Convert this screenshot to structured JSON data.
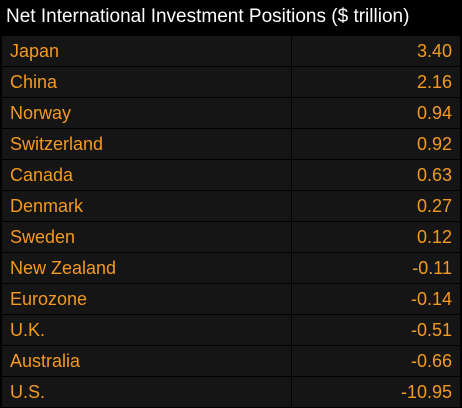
{
  "header": {
    "title": "Net International Investment Positions ($ trillion)"
  },
  "colors": {
    "background": "#000000",
    "row_background": "#151515",
    "text": "#f39a1f",
    "header_text": "#ffffff"
  },
  "chart_data": {
    "type": "table",
    "title": "Net International Investment Positions ($ trillion)",
    "categories": [
      "Japan",
      "China",
      "Norway",
      "Switzerland",
      "Canada",
      "Denmark",
      "Sweden",
      "New Zealand",
      "Eurozone",
      "U.K.",
      "Australia",
      "U.S."
    ],
    "values": [
      3.4,
      2.16,
      0.94,
      0.92,
      0.63,
      0.27,
      0.12,
      -0.11,
      -0.14,
      -0.51,
      -0.66,
      -10.95
    ],
    "value_labels": [
      "3.40",
      "2.16",
      "0.94",
      "0.92",
      "0.63",
      "0.27",
      "0.12",
      "-0.11",
      "-0.14",
      "-0.51",
      "-0.66",
      "-10.95"
    ]
  }
}
